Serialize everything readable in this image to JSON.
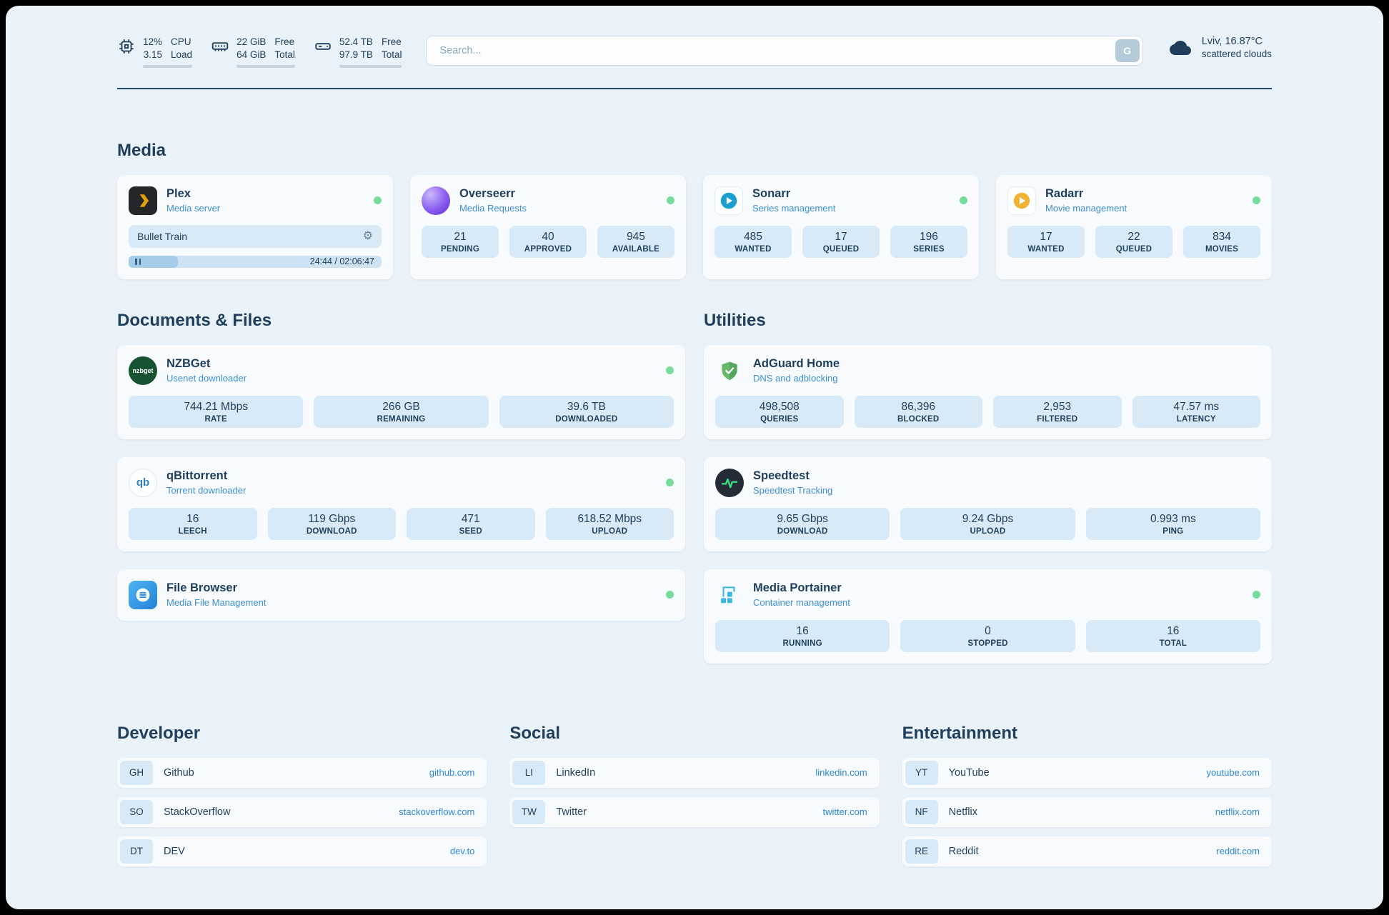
{
  "topbar": {
    "resources": [
      {
        "icon": "cpu-icon",
        "value1": "12%",
        "label1": "CPU",
        "value2": "3.15",
        "label2": "Load",
        "progress_pct": 12
      },
      {
        "icon": "ram-icon",
        "value1": "22 GiB",
        "label1": "Free",
        "value2": "64 GiB",
        "label2": "Total",
        "progress_pct": 66
      },
      {
        "icon": "disk-icon",
        "value1": "52.4 TB",
        "label1": "Free",
        "value2": "97.9 TB",
        "label2": "Total",
        "progress_pct": 46
      }
    ],
    "search": {
      "placeholder": "Search...",
      "provider_label": "G"
    },
    "weather": {
      "location": "Lviv, 16.87°C",
      "condition": "scattered clouds"
    }
  },
  "sections": {
    "media": {
      "title": "Media",
      "cards": [
        {
          "name": "Plex",
          "subtitle": "Media server",
          "status": "online",
          "player": {
            "title": "Bullet Train",
            "time": "24:44 / 02:06:47",
            "progress_pct": 19.5
          }
        },
        {
          "name": "Overseerr",
          "subtitle": "Media Requests",
          "status": "online",
          "stats": [
            {
              "value": "21",
              "label": "PENDING"
            },
            {
              "value": "40",
              "label": "APPROVED"
            },
            {
              "value": "945",
              "label": "AVAILABLE"
            }
          ]
        },
        {
          "name": "Sonarr",
          "subtitle": "Series management",
          "status": "online",
          "stats": [
            {
              "value": "485",
              "label": "WANTED"
            },
            {
              "value": "17",
              "label": "QUEUED"
            },
            {
              "value": "196",
              "label": "SERIES"
            }
          ]
        },
        {
          "name": "Radarr",
          "subtitle": "Movie management",
          "status": "online",
          "stats": [
            {
              "value": "17",
              "label": "WANTED"
            },
            {
              "value": "22",
              "label": "QUEUED"
            },
            {
              "value": "834",
              "label": "MOVIES"
            }
          ]
        }
      ]
    },
    "documents": {
      "title": "Documents & Files",
      "cards": [
        {
          "name": "NZBGet",
          "subtitle": "Usenet downloader",
          "status": "online",
          "icon_text": "nzbget",
          "stats": [
            {
              "value": "744.21 Mbps",
              "label": "RATE"
            },
            {
              "value": "266 GB",
              "label": "REMAINING"
            },
            {
              "value": "39.6 TB",
              "label": "DOWNLOADED"
            }
          ]
        },
        {
          "name": "qBittorrent",
          "subtitle": "Torrent downloader",
          "status": "online",
          "icon_text": "qb",
          "stats": [
            {
              "value": "16",
              "label": "LEECH"
            },
            {
              "value": "119 Gbps",
              "label": "DOWNLOAD"
            },
            {
              "value": "471",
              "label": "SEED"
            },
            {
              "value": "618.52 Mbps",
              "label": "UPLOAD"
            }
          ]
        },
        {
          "name": "File Browser",
          "subtitle": "Media File Management",
          "status": "online",
          "stats": []
        }
      ]
    },
    "utilities": {
      "title": "Utilities",
      "cards": [
        {
          "name": "AdGuard Home",
          "subtitle": "DNS and adblocking",
          "stats": [
            {
              "value": "498,508",
              "label": "QUERIES"
            },
            {
              "value": "86,396",
              "label": "BLOCKED"
            },
            {
              "value": "2,953",
              "label": "FILTERED"
            },
            {
              "value": "47.57 ms",
              "label": "LATENCY"
            }
          ]
        },
        {
          "name": "Speedtest",
          "subtitle": "Speedtest Tracking",
          "stats": [
            {
              "value": "9.65 Gbps",
              "label": "DOWNLOAD"
            },
            {
              "value": "9.24 Gbps",
              "label": "UPLOAD"
            },
            {
              "value": "0.993 ms",
              "label": "PING"
            }
          ]
        },
        {
          "name": "Media Portainer",
          "subtitle": "Container management",
          "status": "online",
          "stats": [
            {
              "value": "16",
              "label": "RUNNING"
            },
            {
              "value": "0",
              "label": "STOPPED"
            },
            {
              "value": "16",
              "label": "TOTAL"
            }
          ]
        }
      ]
    }
  },
  "bookmarks": [
    {
      "title": "Developer",
      "items": [
        {
          "abbr": "GH",
          "name": "Github",
          "url": "github.com"
        },
        {
          "abbr": "SO",
          "name": "StackOverflow",
          "url": "stackoverflow.com"
        },
        {
          "abbr": "DT",
          "name": "DEV",
          "url": "dev.to"
        }
      ]
    },
    {
      "title": "Social",
      "items": [
        {
          "abbr": "LI",
          "name": "LinkedIn",
          "url": "linkedin.com"
        },
        {
          "abbr": "TW",
          "name": "Twitter",
          "url": "twitter.com"
        }
      ]
    },
    {
      "title": "Entertainment",
      "items": [
        {
          "abbr": "YT",
          "name": "YouTube",
          "url": "youtube.com"
        },
        {
          "abbr": "NF",
          "name": "Netflix",
          "url": "netflix.com"
        },
        {
          "abbr": "RE",
          "name": "Reddit",
          "url": "reddit.com"
        }
      ]
    }
  ],
  "colors": {
    "status_online": "#76db9b",
    "link_blue": "#2e86d4",
    "accent_navy": "#1e3e5c"
  }
}
